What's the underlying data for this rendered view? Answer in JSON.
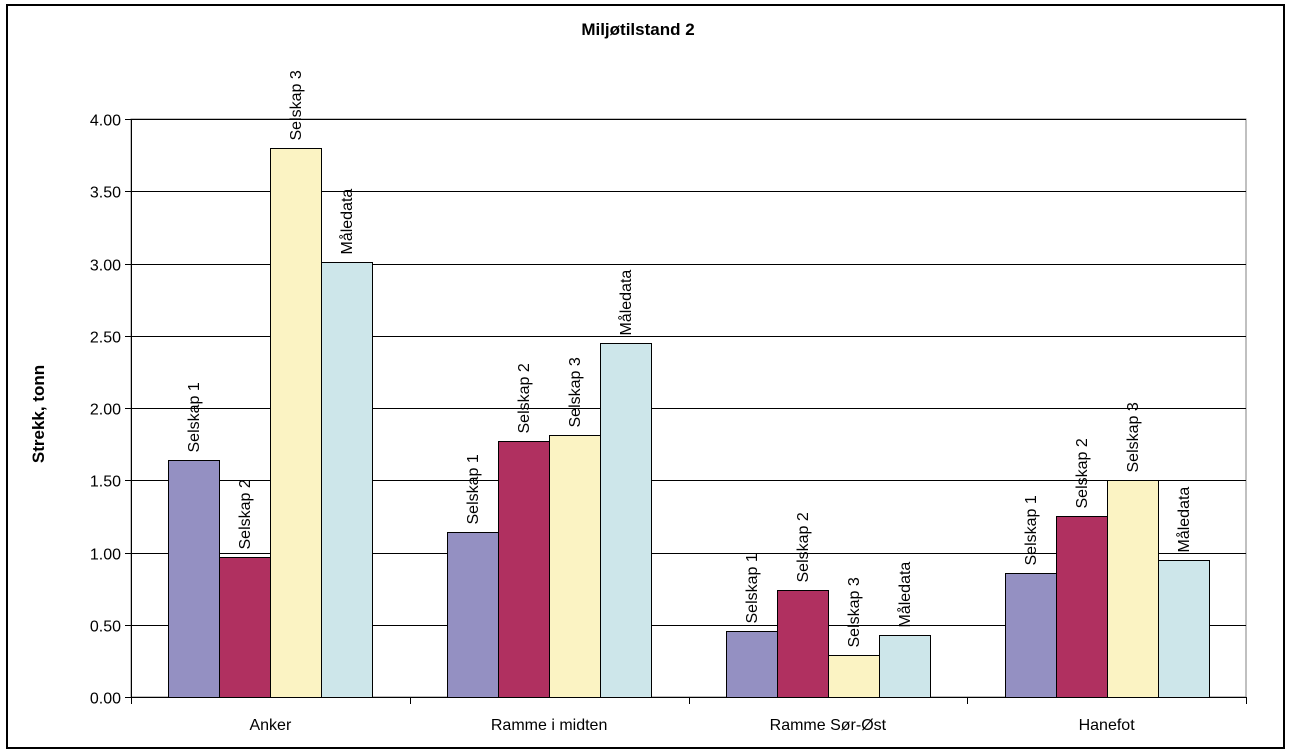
{
  "chart_data": {
    "type": "bar",
    "title": "Miljøtilstand 2",
    "xlabel": "",
    "ylabel": "Strekk, tonn",
    "ylim": [
      0,
      4
    ],
    "yticks": [
      "0.00",
      "0.50",
      "1.00",
      "1.50",
      "2.00",
      "2.50",
      "3.00",
      "3.50",
      "4.00"
    ],
    "categories": [
      "Anker",
      "Ramme i midten",
      "Ramme Sør-Øst",
      "Hanefot"
    ],
    "grid": true,
    "legend": "none",
    "series": [
      {
        "name": "Selskap 1",
        "color": "#9490c2",
        "values": [
          1.64,
          1.14,
          0.46,
          0.86
        ]
      },
      {
        "name": "Selskap 2",
        "color": "#b03060",
        "values": [
          0.97,
          1.77,
          0.74,
          1.25
        ]
      },
      {
        "name": "Selskap 3",
        "color": "#fbf3c3",
        "values": [
          3.8,
          1.81,
          0.29,
          1.5
        ]
      },
      {
        "name": "Måledata",
        "color": "#cde6ea",
        "values": [
          3.01,
          2.45,
          0.43,
          0.95
        ]
      }
    ]
  }
}
